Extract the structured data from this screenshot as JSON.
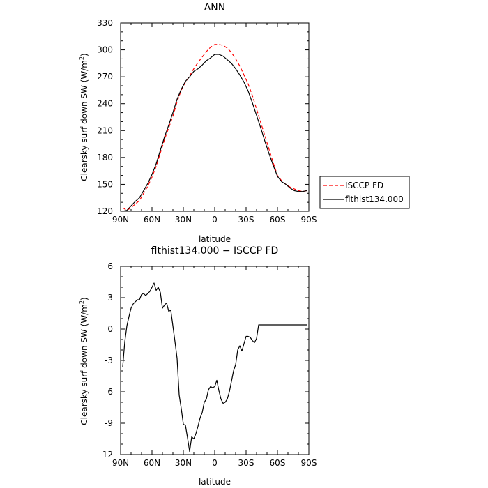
{
  "chart_data": [
    {
      "type": "line",
      "title": "ANN",
      "xlabel": "latitude",
      "ylabel": "Clearsky surf down SW (W/m²)",
      "ylabel_main": "Clearsky surf down SW (W/m",
      "ylabel_sup": "2",
      "ylabel_end": ")",
      "x_tick_labels": [
        "90N",
        "60N",
        "30N",
        "0",
        "30S",
        "60S",
        "90S"
      ],
      "x_tick_values": [
        90,
        60,
        30,
        0,
        -30,
        -60,
        -90
      ],
      "xlim": [
        90,
        -90
      ],
      "ylim": [
        120,
        330
      ],
      "y_ticks": [
        120,
        150,
        180,
        210,
        240,
        270,
        300,
        330
      ],
      "legend": {
        "placement": "right-outside",
        "entries": [
          "ISCCP FD",
          "flthist134.000"
        ]
      },
      "series": [
        {
          "name": "ISCCP FD",
          "color": "#ff0000",
          "dash": "dashed",
          "x": [
            88,
            84,
            80,
            76,
            72,
            68,
            64,
            60,
            56,
            52,
            48,
            44,
            40,
            36,
            32,
            28,
            24,
            20,
            16,
            12,
            8,
            4,
            0,
            -4,
            -8,
            -12,
            -16,
            -20,
            -24,
            -28,
            -32,
            -36,
            -40,
            -44,
            -48,
            -52,
            -56,
            -60,
            -64,
            -68,
            -72,
            -76,
            -80,
            -84,
            -88
          ],
          "y": [
            124,
            121,
            124,
            128,
            132,
            140,
            148,
            158,
            170,
            185,
            200,
            213,
            226,
            242,
            255,
            264,
            271,
            279,
            286,
            292,
            298,
            303,
            306,
            306,
            305,
            302,
            297,
            290,
            282,
            272,
            262,
            249,
            234,
            219,
            204,
            189,
            174,
            160,
            154,
            150,
            147,
            145,
            143,
            142,
            143
          ]
        },
        {
          "name": "flthist134.000",
          "color": "#000000",
          "dash": "solid",
          "x": [
            88,
            84,
            80,
            76,
            72,
            68,
            64,
            60,
            56,
            52,
            48,
            44,
            40,
            36,
            32,
            28,
            24,
            20,
            16,
            12,
            8,
            4,
            0,
            -4,
            -8,
            -12,
            -16,
            -20,
            -24,
            -28,
            -32,
            -36,
            -40,
            -44,
            -48,
            -52,
            -56,
            -60,
            -64,
            -68,
            -72,
            -76,
            -80,
            -84,
            -88
          ],
          "y": [
            120,
            121,
            126,
            131,
            135,
            143,
            151,
            161,
            173,
            188,
            203,
            216,
            230,
            245,
            256,
            265,
            270,
            276,
            279,
            283,
            288,
            291,
            295,
            295,
            293,
            289,
            285,
            279,
            272,
            264,
            254,
            241,
            227,
            213,
            198,
            184,
            171,
            159,
            153,
            150,
            146,
            143,
            142,
            142,
            143
          ]
        }
      ]
    },
    {
      "type": "line",
      "title": "flthist134.000 − ISCCP FD",
      "xlabel": "latitude",
      "ylabel": "Clearsky surf down SW (W/m²)",
      "ylabel_main": "Clearsky surf down SW (W/m",
      "ylabel_sup": "2",
      "ylabel_end": ")",
      "x_tick_labels": [
        "90N",
        "60N",
        "30N",
        "0",
        "30S",
        "60S",
        "90S"
      ],
      "x_tick_values": [
        90,
        60,
        30,
        0,
        -30,
        -60,
        -90
      ],
      "xlim": [
        90,
        -90
      ],
      "ylim": [
        -12,
        6
      ],
      "y_ticks": [
        -12,
        -9,
        -6,
        -3,
        0,
        3,
        6
      ],
      "series": [
        {
          "name": "",
          "color": "#000000",
          "dash": "solid",
          "x": [
            88,
            86,
            84,
            82,
            80,
            78,
            76,
            74,
            72,
            70,
            68,
            66,
            64,
            62,
            60,
            58,
            56,
            54,
            52,
            50,
            48,
            46,
            44,
            42,
            40,
            38,
            36,
            34,
            32,
            30,
            28,
            26,
            24,
            22,
            20,
            18,
            16,
            14,
            12,
            10,
            8,
            6,
            4,
            2,
            0,
            -2,
            -4,
            -6,
            -8,
            -10,
            -12,
            -14,
            -16,
            -18,
            -20,
            -22,
            -24,
            -26,
            -28,
            -30,
            -32,
            -34,
            -36,
            -38,
            -40,
            -42,
            -44,
            -46,
            -48,
            -50,
            -52,
            -54,
            -56,
            -58,
            -60,
            -62,
            -64,
            -66,
            -68,
            -70,
            -72,
            -74,
            -76,
            -78,
            -80,
            -82,
            -84,
            -86,
            -88
          ],
          "y": [
            -3.6,
            -1.2,
            0.3,
            1.2,
            2.0,
            2.4,
            2.6,
            2.8,
            2.8,
            3.3,
            3.4,
            3.2,
            3.4,
            3.6,
            4.0,
            4.4,
            3.7,
            4.0,
            3.5,
            2.0,
            2.3,
            2.5,
            1.7,
            1.8,
            0.3,
            -1.2,
            -2.8,
            -6.3,
            -7.6,
            -9.1,
            -9.2,
            -10.4,
            -11.7,
            -10.3,
            -10.5,
            -10.0,
            -9.3,
            -8.5,
            -8.0,
            -7.0,
            -6.7,
            -5.8,
            -5.5,
            -5.6,
            -5.5,
            -4.9,
            -5.9,
            -6.7,
            -7.1,
            -7.0,
            -6.7,
            -6.0,
            -5.0,
            -4.0,
            -3.4,
            -2.0,
            -1.6,
            -2.1,
            -1.4,
            -0.7,
            -0.7,
            -0.8,
            -1.1,
            -1.3,
            -0.9,
            0.4,
            0.4,
            0.4,
            0.4,
            0.4,
            0.4,
            0.4,
            0.4,
            0.4,
            0.4,
            0.4,
            0.4,
            0.4,
            0.4,
            0.4,
            0.4,
            0.4,
            0.4,
            0.4,
            0.4,
            0.4,
            0.4,
            0.4,
            0.4
          ]
        }
      ]
    }
  ]
}
